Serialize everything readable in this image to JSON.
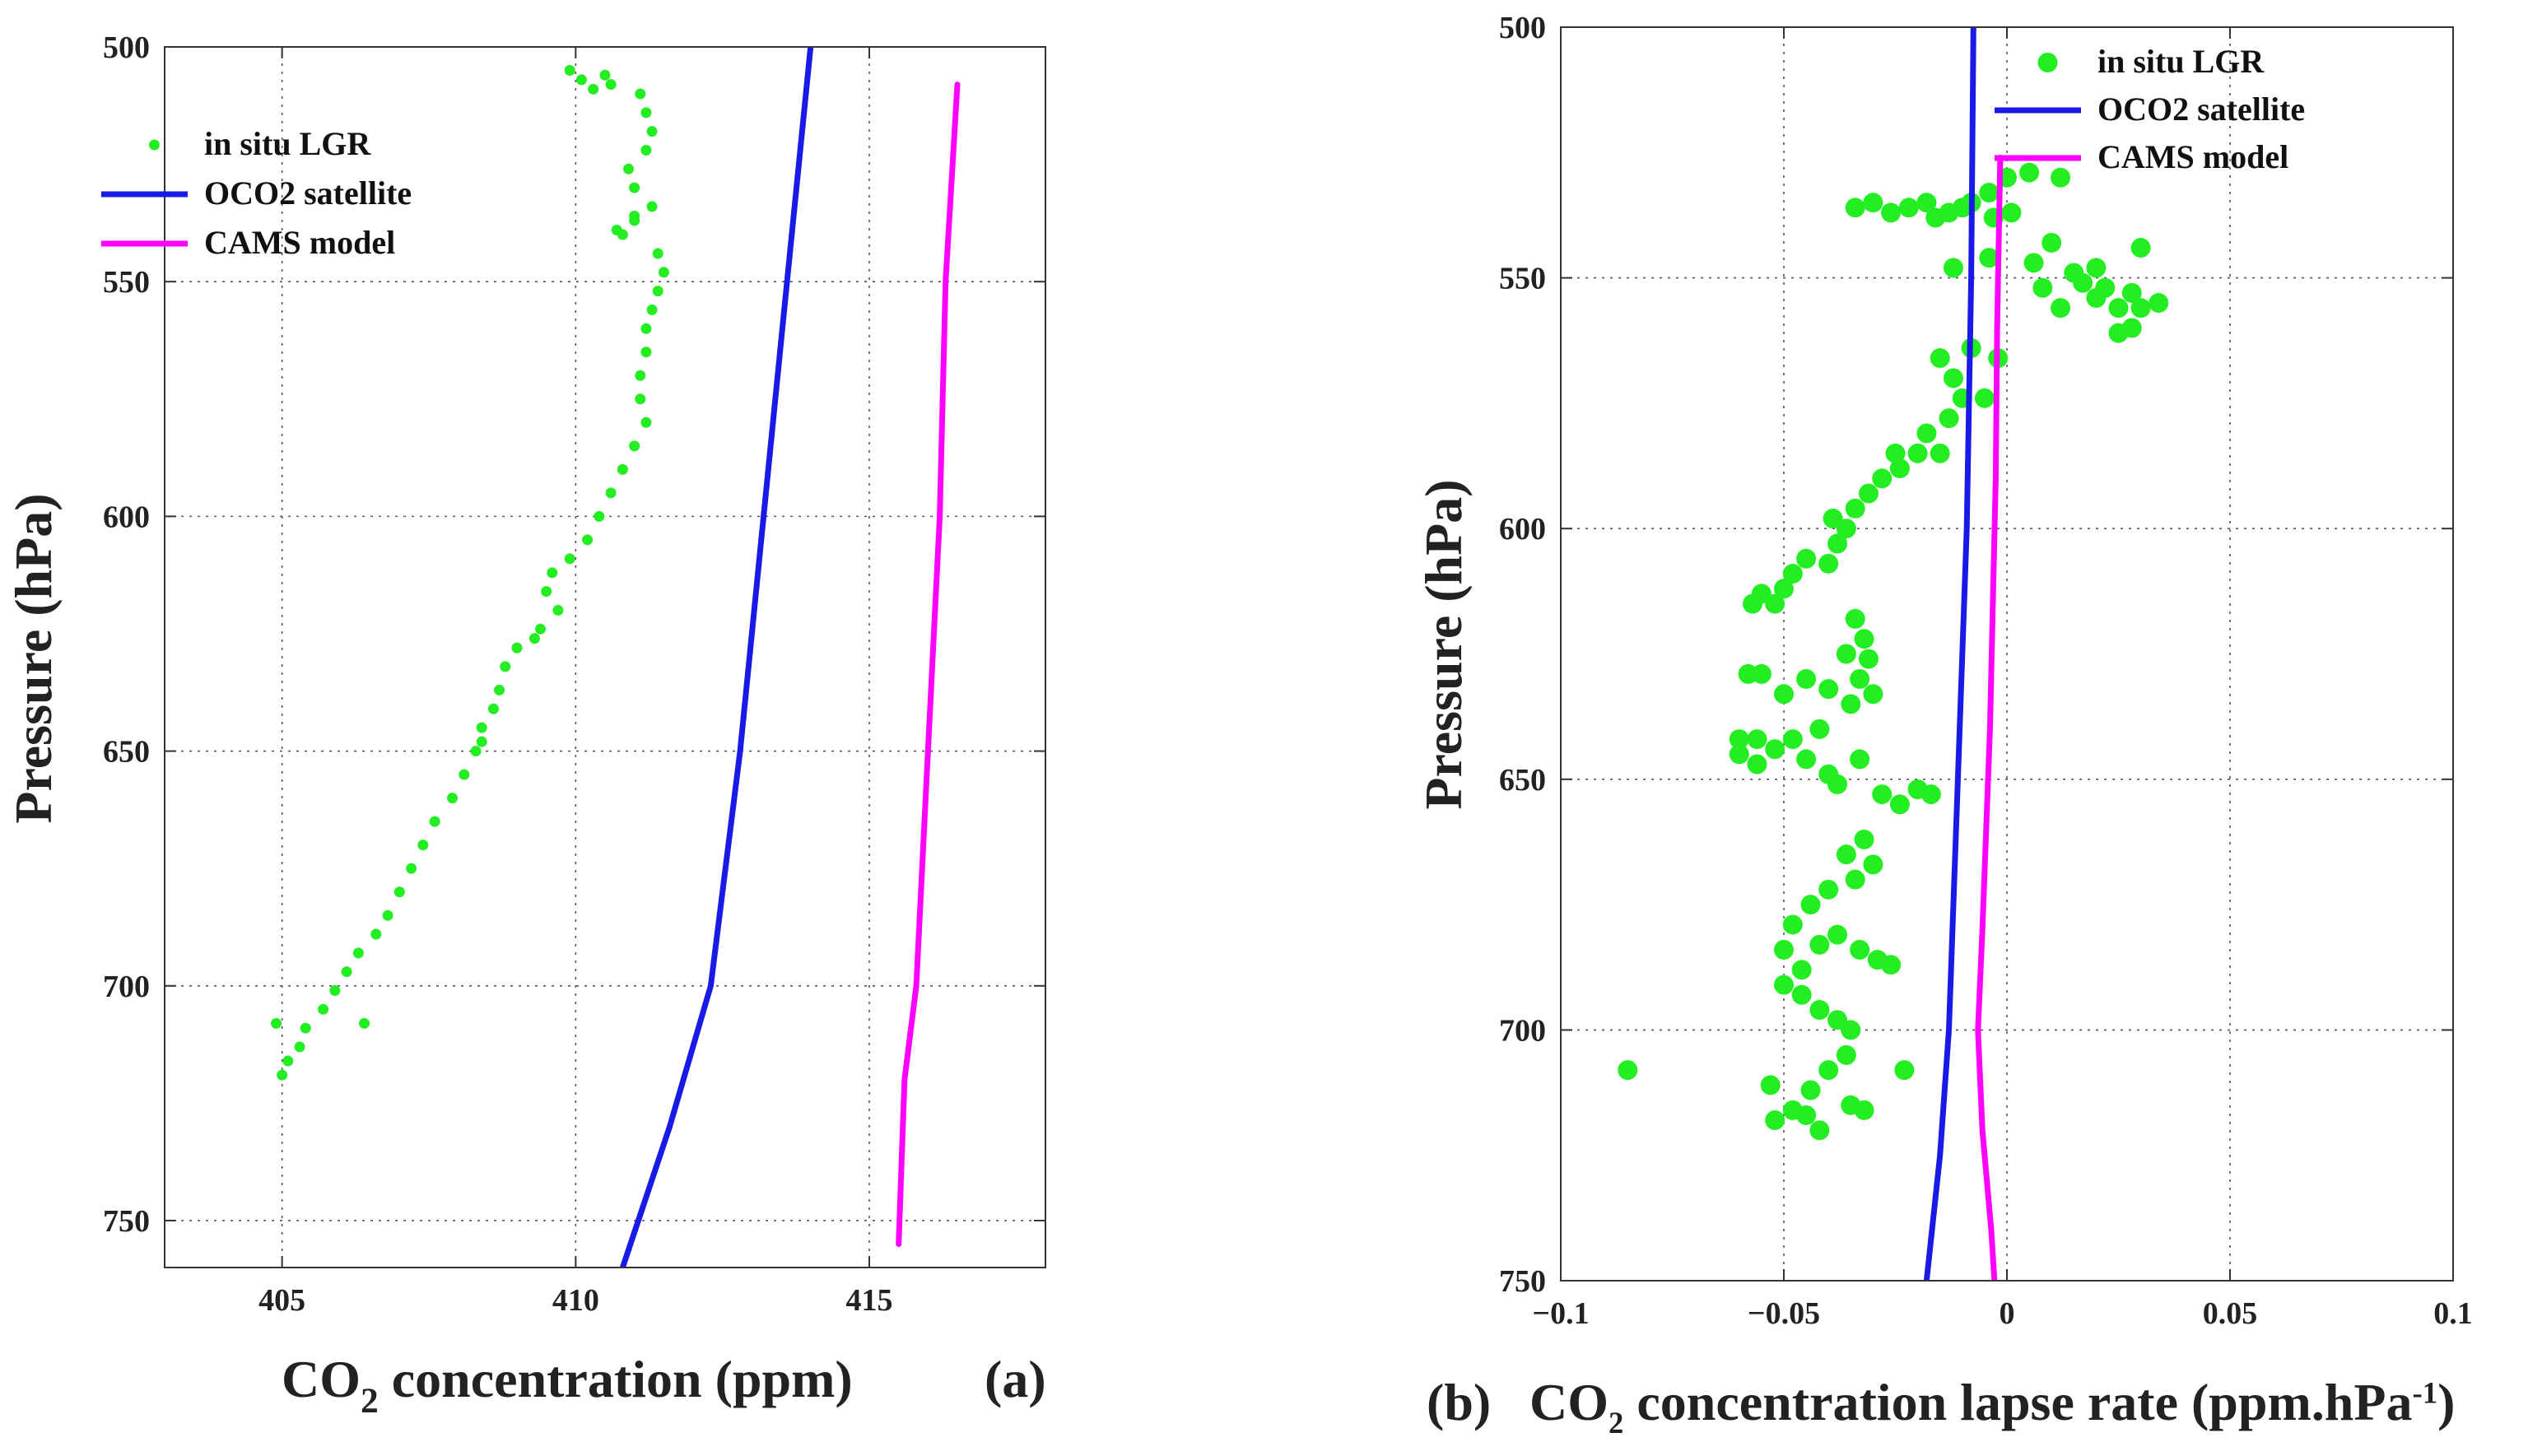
{
  "chart_data": [
    {
      "type": "scatter",
      "panel_label": "(a)",
      "xlabel": {
        "pre": "CO",
        "sub": "2",
        "post": " concentration (ppm)"
      },
      "ylabel": "Pressure (hPa)",
      "xlim": [
        403,
        418
      ],
      "ylim": [
        500,
        760
      ],
      "y_reversed": true,
      "grid": true,
      "xticks": [
        405,
        410,
        415
      ],
      "yticks": [
        500,
        550,
        600,
        650,
        700,
        750
      ],
      "legend_location": "top-left",
      "series": [
        {
          "name": "in situ LGR",
          "type": "scatter",
          "color": "#22ee22",
          "points": [
            [
              409.9,
              505
            ],
            [
              410.1,
              507
            ],
            [
              410.3,
              509
            ],
            [
              410.5,
              506
            ],
            [
              410.6,
              508
            ],
            [
              411.1,
              510
            ],
            [
              411.2,
              514
            ],
            [
              411.3,
              518
            ],
            [
              411.2,
              522
            ],
            [
              410.9,
              526
            ],
            [
              411.0,
              530
            ],
            [
              411.3,
              534
            ],
            [
              411.0,
              537
            ],
            [
              410.8,
              540
            ],
            [
              411.4,
              544
            ],
            [
              411.5,
              548
            ],
            [
              411.4,
              552
            ],
            [
              411.3,
              556
            ],
            [
              411.2,
              560
            ],
            [
              411.2,
              565
            ],
            [
              411.1,
              570
            ],
            [
              411.1,
              575
            ],
            [
              411.2,
              580
            ],
            [
              411.0,
              585
            ],
            [
              410.8,
              590
            ],
            [
              410.6,
              595
            ],
            [
              410.4,
              600
            ],
            [
              410.2,
              605
            ],
            [
              409.9,
              609
            ],
            [
              409.6,
              612
            ],
            [
              409.5,
              616
            ],
            [
              409.7,
              620
            ],
            [
              409.4,
              624
            ],
            [
              409.0,
              628
            ],
            [
              408.8,
              632
            ],
            [
              408.7,
              637
            ],
            [
              408.6,
              641
            ],
            [
              408.4,
              645
            ],
            [
              408.3,
              650
            ],
            [
              408.1,
              655
            ],
            [
              407.9,
              660
            ],
            [
              407.6,
              665
            ],
            [
              407.4,
              670
            ],
            [
              407.2,
              675
            ],
            [
              407.0,
              680
            ],
            [
              406.8,
              685
            ],
            [
              406.6,
              689
            ],
            [
              406.3,
              693
            ],
            [
              406.1,
              697
            ],
            [
              405.9,
              701
            ],
            [
              405.7,
              705
            ],
            [
              405.4,
              709
            ],
            [
              405.3,
              713
            ],
            [
              405.1,
              716
            ],
            [
              405.0,
              719
            ],
            [
              404.9,
              708
            ],
            [
              406.4,
              708
            ],
            [
              411.0,
              536
            ],
            [
              410.7,
              539
            ],
            [
              409.3,
              626
            ],
            [
              408.4,
              648
            ]
          ]
        },
        {
          "name": "OCO2 satellite",
          "type": "line",
          "color": "#1a1ae6",
          "points": [
            [
              414.0,
              500
            ],
            [
              413.6,
              550
            ],
            [
              413.2,
              600
            ],
            [
              412.8,
              650
            ],
            [
              412.3,
              700
            ],
            [
              411.6,
              730
            ],
            [
              410.8,
              760
            ]
          ]
        },
        {
          "name": "CAMS model",
          "type": "line",
          "color": "#ff00ff",
          "points": [
            [
              416.5,
              508
            ],
            [
              416.3,
              550
            ],
            [
              416.2,
              600
            ],
            [
              416.0,
              650
            ],
            [
              415.8,
              700
            ],
            [
              415.6,
              720
            ],
            [
              415.5,
              755
            ]
          ]
        }
      ]
    },
    {
      "type": "scatter",
      "panel_label": "(b)",
      "xlabel": {
        "pre": "CO",
        "sub": "2",
        "post": " concentration lapse rate  (ppm.hPa",
        "sup": "-1",
        "close": ")"
      },
      "ylabel": "Pressure (hPa)",
      "xlim": [
        -0.1,
        0.1
      ],
      "ylim": [
        500,
        750
      ],
      "y_reversed": true,
      "grid": true,
      "xticks": [
        -0.1,
        -0.05,
        0,
        0.05,
        0.1
      ],
      "xtick_labels": [
        "−0.1",
        "−0.05",
        "0",
        "0.05",
        "0.1"
      ],
      "yticks": [
        500,
        550,
        600,
        650,
        700,
        750
      ],
      "legend_location": "top-right",
      "series": [
        {
          "name": "in situ LGR",
          "type": "scatter",
          "color": "#22ee22",
          "points": [
            [
              0.0,
              530
            ],
            [
              0.005,
              529
            ],
            [
              0.012,
              530
            ],
            [
              -0.004,
              533
            ],
            [
              -0.008,
              535
            ],
            [
              -0.01,
              536
            ],
            [
              -0.013,
              537
            ],
            [
              -0.018,
              535
            ],
            [
              -0.022,
              536
            ],
            [
              -0.026,
              537
            ],
            [
              -0.03,
              535
            ],
            [
              -0.034,
              536
            ],
            [
              -0.016,
              538
            ],
            [
              -0.003,
              538
            ],
            [
              0.001,
              537
            ],
            [
              0.006,
              547
            ],
            [
              0.01,
              543
            ],
            [
              0.015,
              549
            ],
            [
              0.017,
              551
            ],
            [
              0.02,
              548
            ],
            [
              0.022,
              552
            ],
            [
              0.025,
              556
            ],
            [
              0.028,
              553
            ],
            [
              0.03,
              556
            ],
            [
              0.034,
              555
            ],
            [
              0.03,
              544
            ],
            [
              0.012,
              556
            ],
            [
              0.008,
              552
            ],
            [
              -0.004,
              546
            ],
            [
              -0.012,
              548
            ],
            [
              0.025,
              561
            ],
            [
              0.028,
              560
            ],
            [
              0.02,
              554
            ],
            [
              -0.008,
              564
            ],
            [
              -0.015,
              566
            ],
            [
              -0.012,
              570
            ],
            [
              -0.002,
              566
            ],
            [
              -0.01,
              574
            ],
            [
              -0.013,
              578
            ],
            [
              -0.018,
              581
            ],
            [
              -0.02,
              585
            ],
            [
              -0.024,
              588
            ],
            [
              -0.028,
              590
            ],
            [
              -0.031,
              593
            ],
            [
              -0.034,
              596
            ],
            [
              -0.036,
              600
            ],
            [
              -0.038,
              603
            ],
            [
              -0.039,
              598
            ],
            [
              -0.04,
              607
            ],
            [
              -0.045,
              606
            ],
            [
              -0.048,
              609
            ],
            [
              -0.05,
              612
            ],
            [
              -0.052,
              615
            ],
            [
              -0.055,
              613
            ],
            [
              -0.057,
              615
            ],
            [
              -0.025,
              585
            ],
            [
              -0.015,
              585
            ],
            [
              -0.005,
              574
            ],
            [
              -0.034,
              618
            ],
            [
              -0.032,
              622
            ],
            [
              -0.031,
              626
            ],
            [
              -0.033,
              630
            ],
            [
              -0.036,
              625
            ],
            [
              -0.03,
              633
            ],
            [
              -0.035,
              635
            ],
            [
              -0.04,
              632
            ],
            [
              -0.045,
              630
            ],
            [
              -0.05,
              633
            ],
            [
              -0.055,
              629
            ],
            [
              -0.058,
              629
            ],
            [
              -0.042,
              640
            ],
            [
              -0.048,
              642
            ],
            [
              -0.052,
              644
            ],
            [
              -0.056,
              642
            ],
            [
              -0.06,
              642
            ],
            [
              -0.06,
              645
            ],
            [
              -0.056,
              647
            ],
            [
              -0.045,
              646
            ],
            [
              -0.04,
              649
            ],
            [
              -0.038,
              651
            ],
            [
              -0.033,
              646
            ],
            [
              -0.028,
              653
            ],
            [
              -0.024,
              655
            ],
            [
              -0.02,
              652
            ],
            [
              -0.017,
              653
            ],
            [
              -0.032,
              662
            ],
            [
              -0.036,
              665
            ],
            [
              -0.03,
              667
            ],
            [
              -0.034,
              670
            ],
            [
              -0.04,
              672
            ],
            [
              -0.044,
              675
            ],
            [
              -0.048,
              679
            ],
            [
              -0.05,
              684
            ],
            [
              -0.046,
              688
            ],
            [
              -0.042,
              683
            ],
            [
              -0.038,
              681
            ],
            [
              -0.033,
              684
            ],
            [
              -0.029,
              686
            ],
            [
              -0.026,
              687
            ],
            [
              -0.05,
              691
            ],
            [
              -0.046,
              693
            ],
            [
              -0.042,
              696
            ],
            [
              -0.038,
              698
            ],
            [
              -0.035,
              700
            ],
            [
              -0.036,
              705
            ],
            [
              -0.04,
              708
            ],
            [
              -0.044,
              712
            ],
            [
              -0.048,
              716
            ],
            [
              -0.053,
              711
            ],
            [
              -0.052,
              718
            ],
            [
              -0.045,
              717
            ],
            [
              -0.042,
              720
            ],
            [
              -0.035,
              715
            ],
            [
              -0.032,
              716
            ],
            [
              -0.085,
              708
            ],
            [
              -0.023,
              708
            ]
          ]
        },
        {
          "name": "OCO2 satellite",
          "type": "line",
          "color": "#1a1ae6",
          "points": [
            [
              -0.0075,
              500
            ],
            [
              -0.008,
              550
            ],
            [
              -0.009,
              600
            ],
            [
              -0.011,
              650
            ],
            [
              -0.013,
              700
            ],
            [
              -0.015,
              725
            ],
            [
              -0.018,
              750
            ]
          ]
        },
        {
          "name": "CAMS model",
          "type": "line",
          "color": "#ff00ff",
          "points": [
            [
              -0.0015,
              526
            ],
            [
              -0.0022,
              560
            ],
            [
              -0.0025,
              590
            ],
            [
              -0.0038,
              640
            ],
            [
              -0.0055,
              680
            ],
            [
              -0.0065,
              700
            ],
            [
              -0.0055,
              720
            ],
            [
              -0.0035,
              740
            ],
            [
              -0.0028,
              750
            ]
          ]
        }
      ]
    }
  ]
}
